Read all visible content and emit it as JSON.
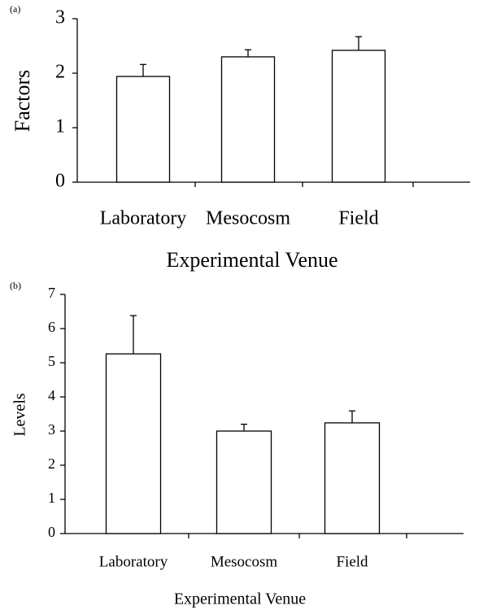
{
  "chart_data": [
    {
      "type": "bar",
      "panel": "(a)",
      "y_label": "Factors",
      "x_label": "Experimental Venue",
      "categories": [
        "Laboratory",
        "Mesocosm",
        "Field"
      ],
      "values": [
        1.94,
        2.3,
        2.42
      ],
      "errors": [
        0.22,
        0.13,
        0.25
      ],
      "color": "#ffffff",
      "ylim": [
        0,
        3
      ],
      "yticks": [
        0,
        1,
        2,
        3
      ]
    },
    {
      "type": "bar",
      "panel": "(b)",
      "y_label": "Levels",
      "x_label": "Experimental Venue",
      "categories": [
        "Laboratory",
        "Mesocosm",
        "Field"
      ],
      "values": [
        5.26,
        3.0,
        3.24
      ],
      "errors": [
        1.12,
        0.2,
        0.35
      ],
      "color": "#ffffff",
      "ylim": [
        0,
        7
      ],
      "yticks": [
        0,
        1,
        2,
        3,
        4,
        5,
        6,
        7
      ]
    }
  ]
}
